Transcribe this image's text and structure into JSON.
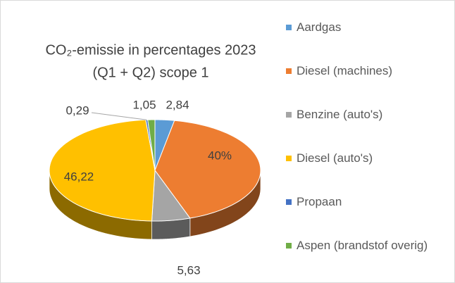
{
  "chart_data": {
    "type": "pie",
    "title": [
      "CO₂-emissie in  percentages 2023",
      "(Q1 + Q2) scope 1"
    ],
    "categories": [
      "Aardgas",
      "Diesel (machines)",
      "Benzine (auto's)",
      "Diesel (auto's)",
      "Propaan",
      "Aspen (brandstof overig)"
    ],
    "values": [
      2.84,
      40,
      5.63,
      46.22,
      0.29,
      1.05
    ],
    "value_labels": [
      "2,84",
      "40%",
      "5,63",
      "46,22",
      "0,29",
      "1,05"
    ],
    "colors": [
      "#5b9bd5",
      "#ed7d31",
      "#a5a5a5",
      "#ffc000",
      "#4472c4",
      "#70ad47"
    ],
    "legend": "right"
  }
}
